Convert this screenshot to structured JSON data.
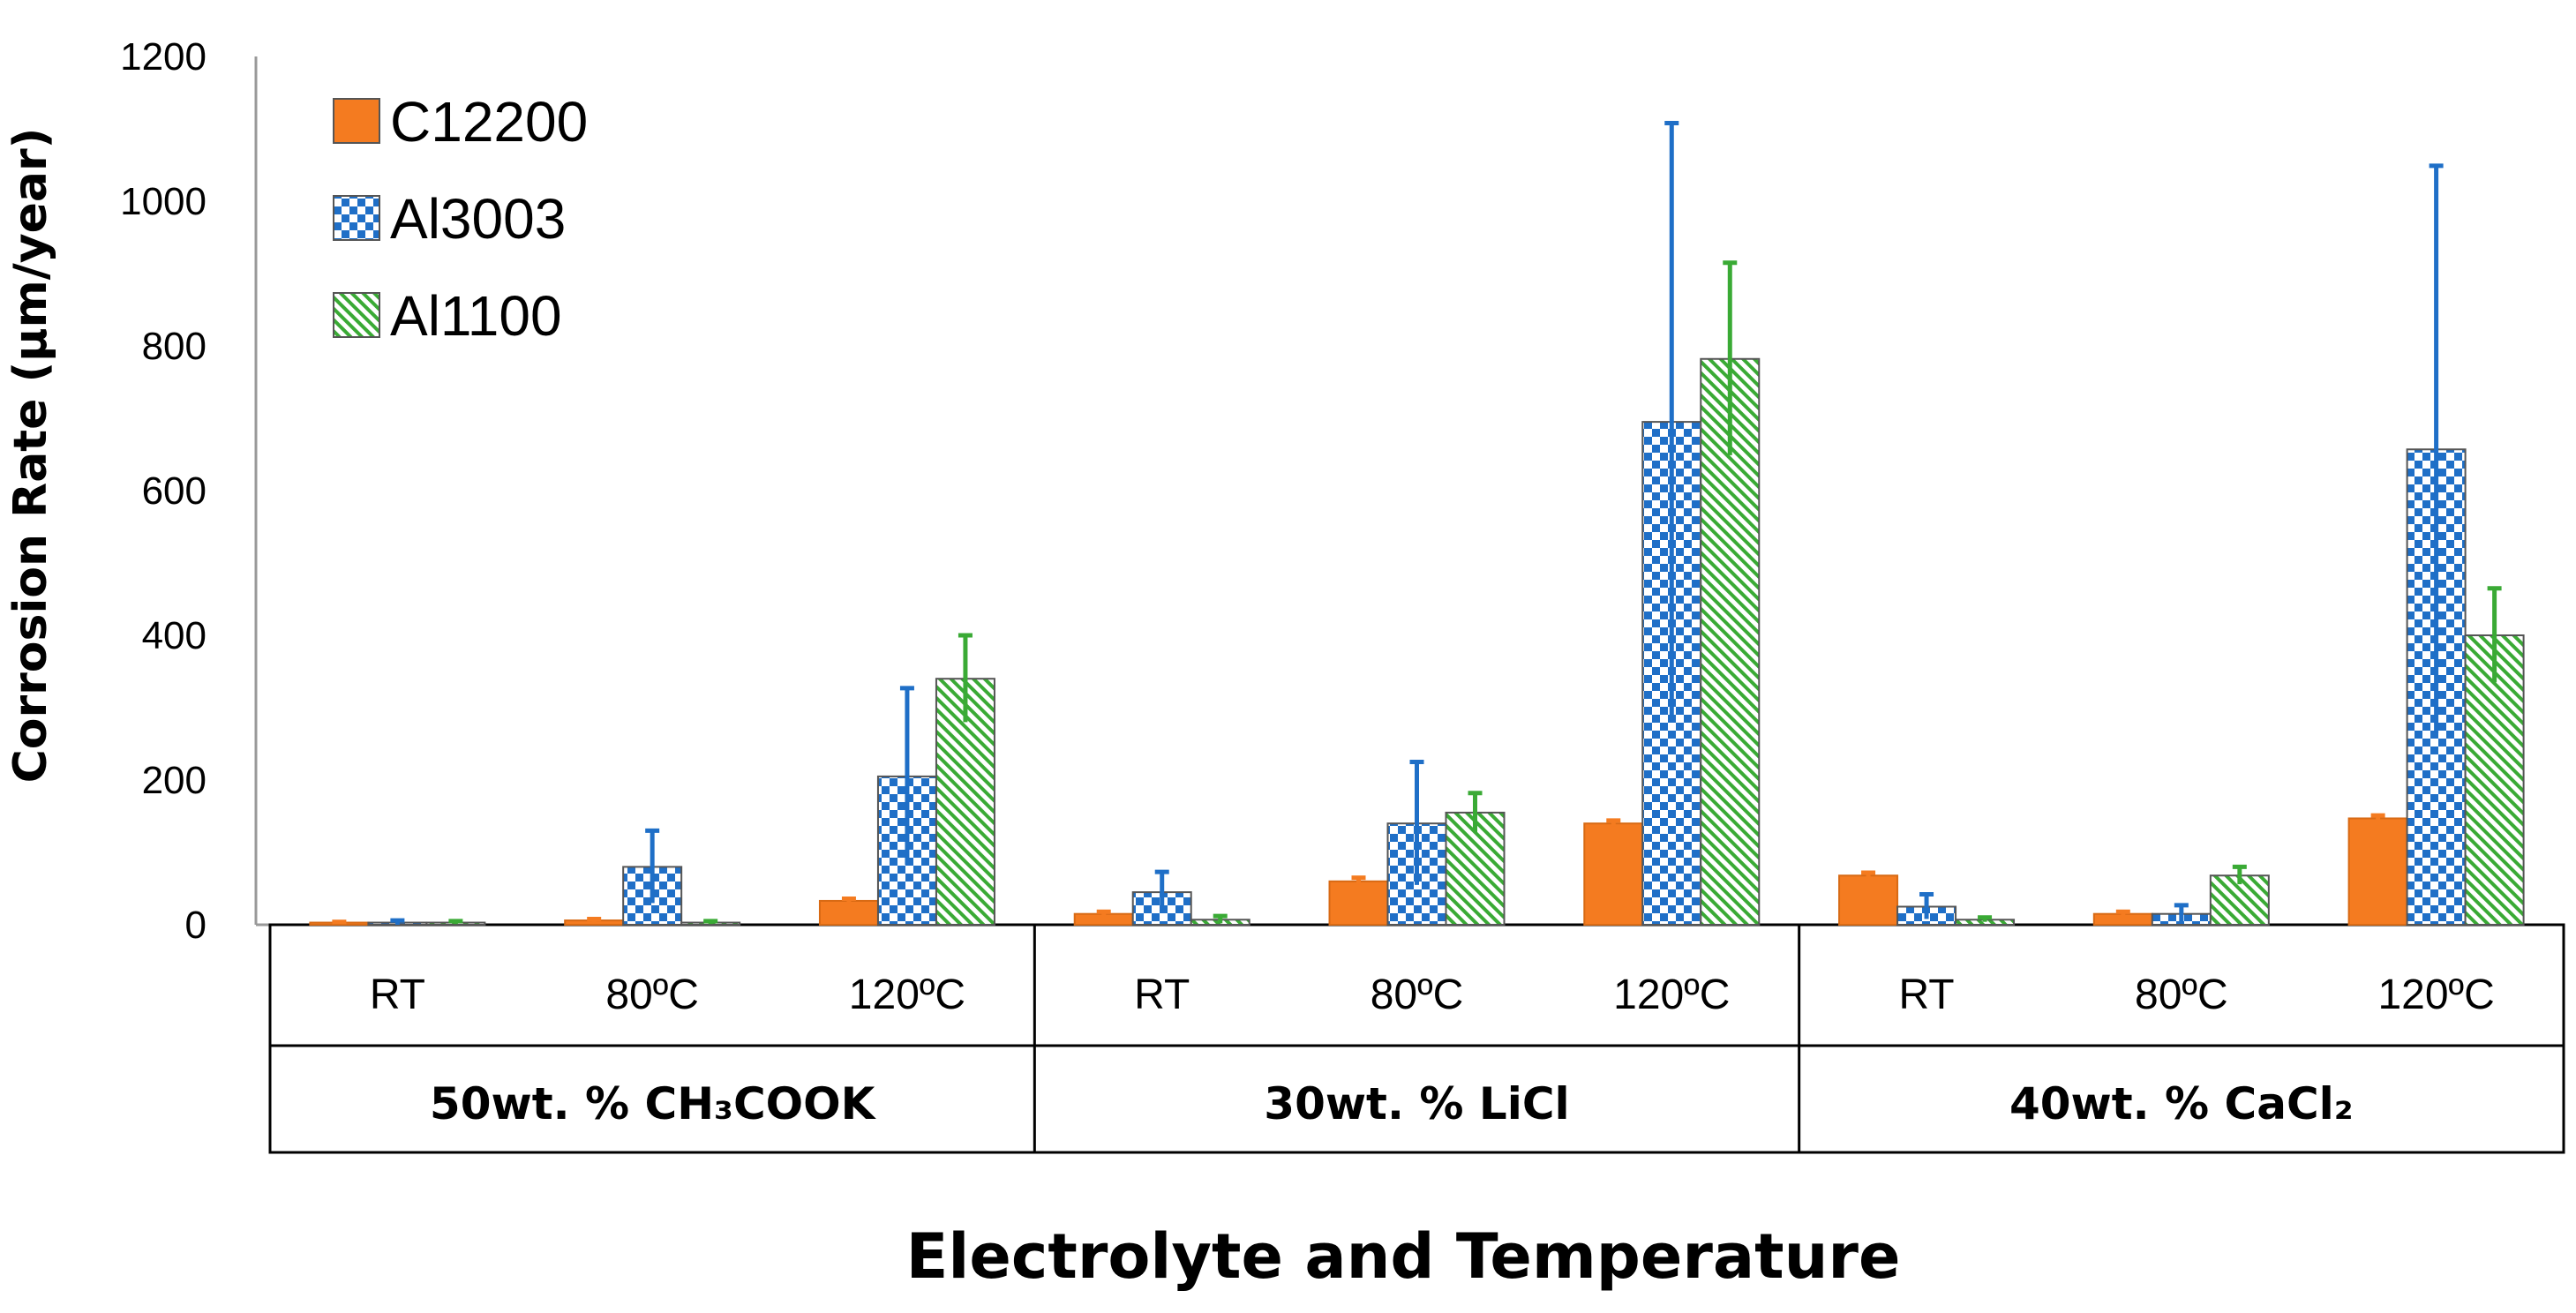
{
  "chart_data": {
    "type": "bar",
    "title": "",
    "xlabel": "Electrolyte and Temperature",
    "ylabel": "Corrosion Rate (µm/year)",
    "ylim": [
      0,
      1200
    ],
    "yticks": [
      0,
      200,
      400,
      600,
      800,
      1000,
      1200
    ],
    "legend_position": "top-left",
    "groups": [
      {
        "label": "50wt. % CH₃COOK",
        "temperatures": [
          "RT",
          "80ºC",
          "120ºC"
        ]
      },
      {
        "label": "30wt. % LiCl",
        "temperatures": [
          "RT",
          "80ºC",
          "120ºC"
        ]
      },
      {
        "label": "40wt. % CaCl₂",
        "temperatures": [
          "RT",
          "80ºC",
          "120ºC"
        ]
      }
    ],
    "categories": [
      "RT",
      "80ºC",
      "120ºC",
      "RT",
      "80ºC",
      "120ºC",
      "RT",
      "80ºC",
      "120ºC"
    ],
    "series": [
      {
        "name": "C12200",
        "color": "#F47B20",
        "pattern": "solid",
        "values": [
          3,
          6,
          33,
          15,
          60,
          140,
          68,
          15,
          147
        ],
        "errors": [
          1,
          2,
          3,
          3,
          5,
          4,
          4,
          3,
          4
        ]
      },
      {
        "name": "Al3003",
        "color": "#1F6FC7",
        "pattern": "checker",
        "values": [
          3,
          80,
          205,
          45,
          140,
          695,
          25,
          15,
          657
        ],
        "errors": [
          3,
          50,
          122,
          28,
          85,
          413,
          17,
          12,
          392
        ]
      },
      {
        "name": "Al1100",
        "color": "#3AAA35",
        "pattern": "diagonal",
        "values": [
          3,
          3,
          340,
          7,
          155,
          782,
          7,
          68,
          400
        ],
        "errors": [
          2,
          2,
          60,
          5,
          27,
          133,
          3,
          12,
          65
        ]
      }
    ]
  }
}
